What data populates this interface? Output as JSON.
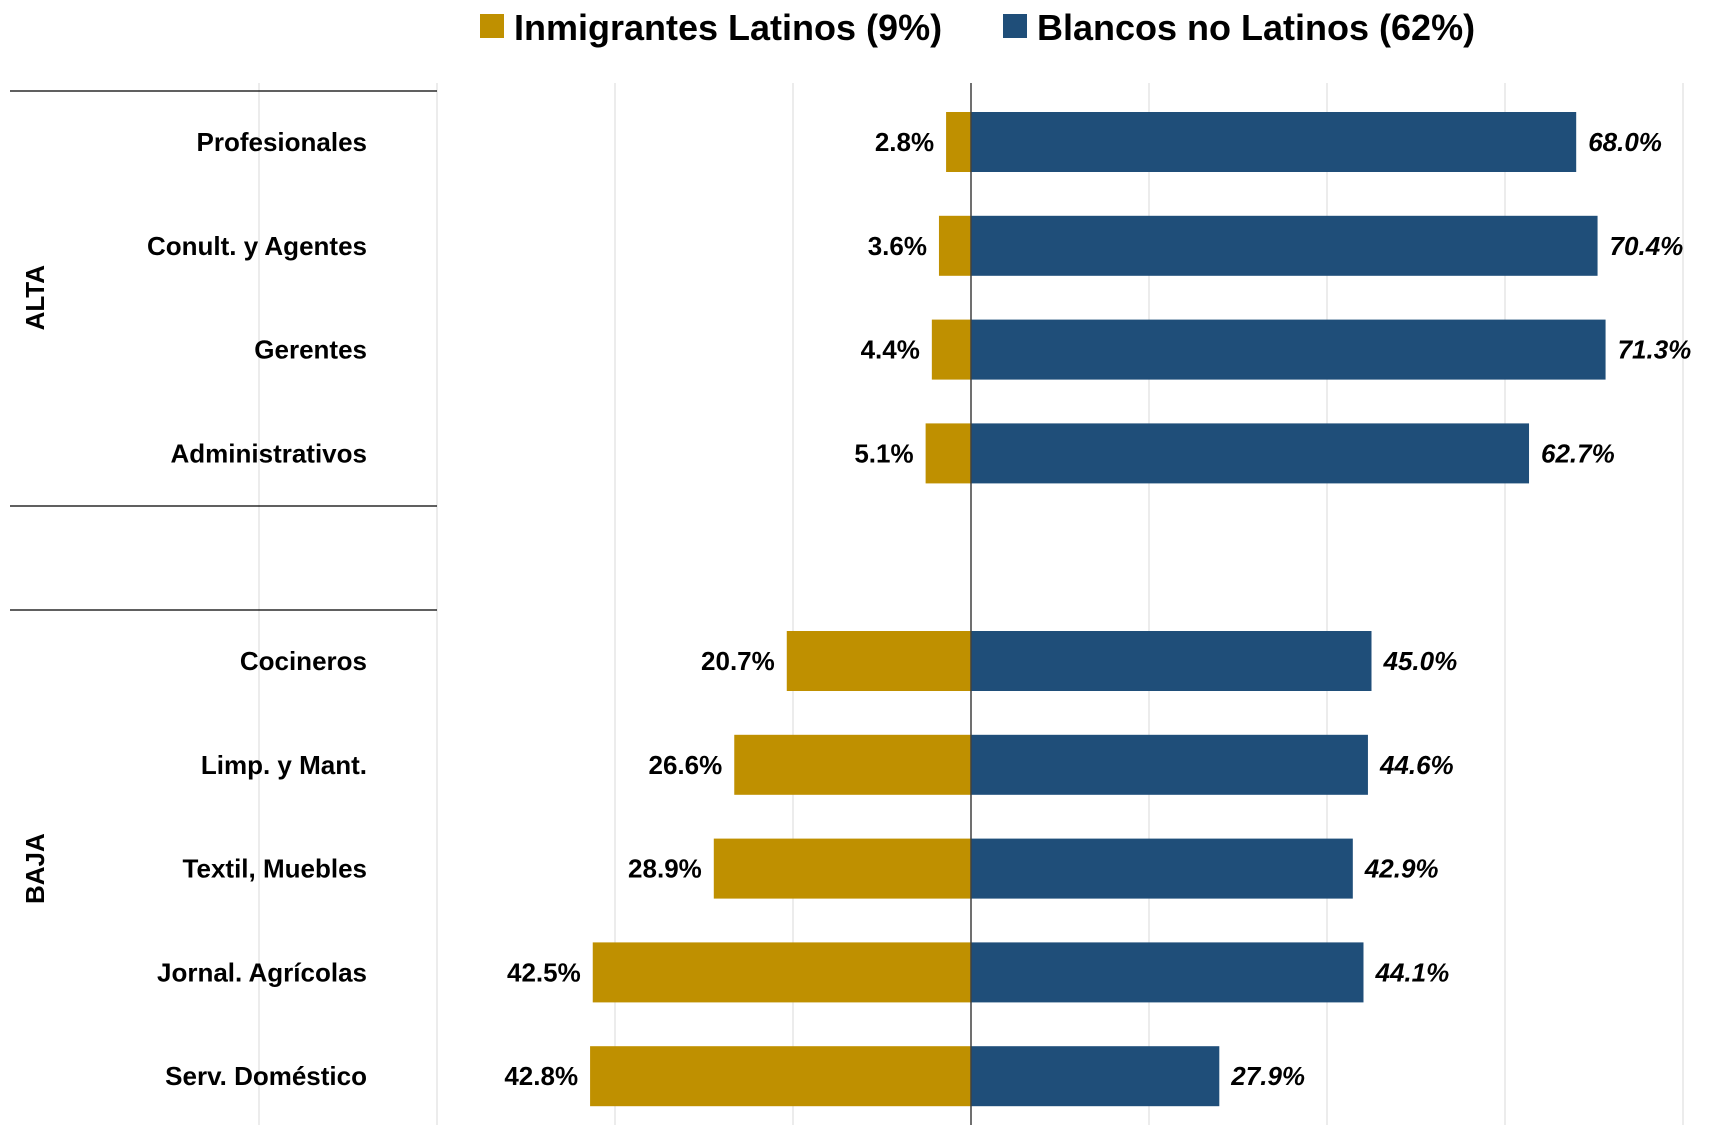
{
  "chart_data": {
    "type": "bar",
    "orientation": "horizontal-diverging",
    "legend_position": "top",
    "grid": true,
    "xlim": [
      -80,
      80
    ],
    "colors": {
      "left": "#BF9000",
      "right": "#1F4E79"
    },
    "series": [
      {
        "name": "Inmigrantes Latinos (9%)",
        "side": "left",
        "values": [
          2.8,
          3.6,
          4.4,
          5.1,
          null,
          20.7,
          26.6,
          28.9,
          42.5,
          42.8
        ],
        "labels": [
          "2.8%",
          "3.6%",
          "4.4%",
          "5.1%",
          "",
          "20.7%",
          "26.6%",
          "28.9%",
          "42.5%",
          "42.8%"
        ]
      },
      {
        "name": "Blancos no Latinos (62%)",
        "side": "right",
        "values": [
          68.0,
          70.4,
          71.3,
          62.7,
          null,
          45.0,
          44.6,
          42.9,
          44.1,
          27.9
        ],
        "labels": [
          "68.0%",
          "70.4%",
          "71.3%",
          "62.7%",
          "",
          "45.0%",
          "44.6%",
          "42.9%",
          "44.1%",
          "27.9%"
        ]
      }
    ],
    "categories": [
      "Profesionales",
      "Conult. y Agentes",
      "Gerentes",
      "Administrativos",
      "",
      "Cocineros",
      "Limp. y Mant.",
      "Textil, Muebles",
      "Jornal. Agrícolas",
      "Serv. Doméstico"
    ],
    "groups": [
      {
        "label": "ALTA",
        "start": 0,
        "end": 3
      },
      {
        "label": "BAJA",
        "start": 5,
        "end": 9
      }
    ]
  }
}
